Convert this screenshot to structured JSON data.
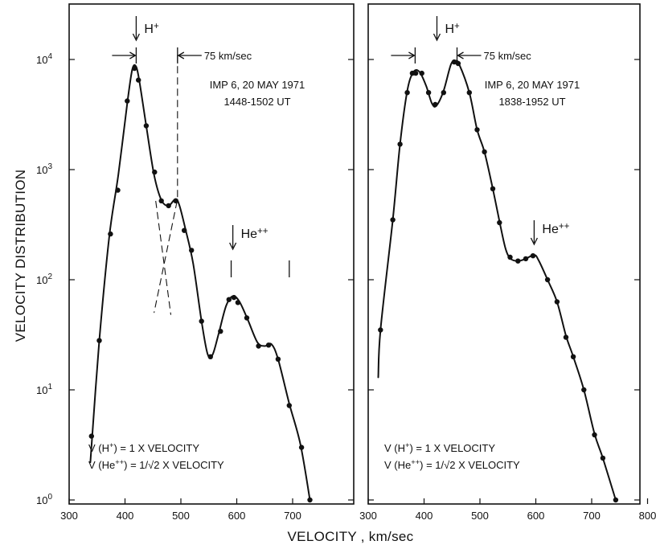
{
  "chart_data": {
    "type": "line",
    "xlabel": "VELOCITY , km/sec",
    "ylabel": "VELOCITY DISTRIBUTION",
    "yscale": "log",
    "ylim": [
      1,
      30000
    ],
    "ytick_exponents": [
      "0",
      "1",
      "2",
      "3",
      "4"
    ],
    "grid": false,
    "panels": [
      {
        "name": "left",
        "xlim": [
          300,
          760
        ],
        "xticks": [
          "300",
          "400",
          "500",
          "600",
          "700"
        ],
        "title_line1": "IMP 6,  20 MAY 1971",
        "title_line2": "1448-1502 UT",
        "h_label": "H",
        "h_sup": "+",
        "he_label": "He",
        "he_sup": "++",
        "width_label": "75  km/sec",
        "note_line1_pre": "V (H",
        "note_line1_sup": "+",
        "note_line1_post": ") = 1  X  VELOCITY",
        "note_line2_pre": "V (He",
        "note_line2_sup": "++",
        "note_line2_post": ") = 1/√2  X  VELOCITY",
        "h_arrow_x": 420,
        "he_arrow_x": 593,
        "width_marks": [
          420,
          494
        ],
        "he_marks": [
          590,
          694
        ],
        "points": [
          {
            "x": 340,
            "y": 3.8
          },
          {
            "x": 354,
            "y": 28
          },
          {
            "x": 374,
            "y": 260
          },
          {
            "x": 387,
            "y": 650
          },
          {
            "x": 404,
            "y": 4200
          },
          {
            "x": 417,
            "y": 8300
          },
          {
            "x": 424,
            "y": 6500
          },
          {
            "x": 438,
            "y": 2500
          },
          {
            "x": 453,
            "y": 950
          },
          {
            "x": 465,
            "y": 520
          },
          {
            "x": 478,
            "y": 470
          },
          {
            "x": 491,
            "y": 520
          },
          {
            "x": 506,
            "y": 280
          },
          {
            "x": 519,
            "y": 185
          },
          {
            "x": 537,
            "y": 42
          },
          {
            "x": 553,
            "y": 20
          },
          {
            "x": 571,
            "y": 34
          },
          {
            "x": 586,
            "y": 66
          },
          {
            "x": 595,
            "y": 69
          },
          {
            "x": 602,
            "y": 62
          },
          {
            "x": 618,
            "y": 45
          },
          {
            "x": 639,
            "y": 25
          },
          {
            "x": 657,
            "y": 25.5
          },
          {
            "x": 674,
            "y": 19
          },
          {
            "x": 694,
            "y": 7.2
          },
          {
            "x": 716,
            "y": 3
          },
          {
            "x": 731,
            "y": 1
          }
        ],
        "curve": [
          {
            "x": 338,
            "y": 2.2
          },
          {
            "x": 354,
            "y": 28
          },
          {
            "x": 372,
            "y": 250
          },
          {
            "x": 388,
            "y": 900
          },
          {
            "x": 404,
            "y": 4000
          },
          {
            "x": 413,
            "y": 8100
          },
          {
            "x": 420,
            "y": 8600
          },
          {
            "x": 426,
            "y": 6200
          },
          {
            "x": 438,
            "y": 2500
          },
          {
            "x": 452,
            "y": 900
          },
          {
            "x": 465,
            "y": 530
          },
          {
            "x": 478,
            "y": 470
          },
          {
            "x": 490,
            "y": 540
          },
          {
            "x": 497,
            "y": 480
          },
          {
            "x": 508,
            "y": 290
          },
          {
            "x": 522,
            "y": 140
          },
          {
            "x": 537,
            "y": 42
          },
          {
            "x": 548,
            "y": 21
          },
          {
            "x": 557,
            "y": 21
          },
          {
            "x": 568,
            "y": 33
          },
          {
            "x": 581,
            "y": 58
          },
          {
            "x": 593,
            "y": 71
          },
          {
            "x": 605,
            "y": 63
          },
          {
            "x": 620,
            "y": 43
          },
          {
            "x": 637,
            "y": 27
          },
          {
            "x": 650,
            "y": 25
          },
          {
            "x": 662,
            "y": 26
          },
          {
            "x": 674,
            "y": 19
          },
          {
            "x": 694,
            "y": 7.5
          },
          {
            "x": 714,
            "y": 3.2
          },
          {
            "x": 731,
            "y": 1
          }
        ],
        "dashed_lines": [
          [
            {
              "x": 494,
              "y": 11000
            },
            {
              "x": 494,
              "y": 540
            },
            {
              "x": 452,
              "y": 50
            }
          ],
          [
            {
              "x": 455,
              "y": 520
            },
            {
              "x": 482,
              "y": 48
            }
          ]
        ]
      },
      {
        "name": "right",
        "xlim": [
          300,
          810
        ],
        "xticks": [
          "300",
          "400",
          "500",
          "600",
          "700",
          "800"
        ],
        "title_line1": "IMP 6,  20 MAY 1971",
        "title_line2": "1838-1952 UT",
        "h_label": "H",
        "h_sup": "+",
        "he_label": "He",
        "he_sup": "++",
        "width_label": "75  km/sec",
        "note_line1_pre": "V (H",
        "note_line1_sup": "+",
        "note_line1_post": ") = 1  X  VELOCITY",
        "note_line2_pre": "V (He",
        "note_line2_sup": "++",
        "note_line2_post": ") = 1/√2  X  VELOCITY",
        "h_arrow_x": 423,
        "he_arrow_x": 597,
        "width_marks": [
          384,
          459
        ],
        "points": [
          {
            "x": 322,
            "y": 35
          },
          {
            "x": 344,
            "y": 350
          },
          {
            "x": 357,
            "y": 1700
          },
          {
            "x": 370,
            "y": 5000
          },
          {
            "x": 379,
            "y": 7500
          },
          {
            "x": 385,
            "y": 7500
          },
          {
            "x": 396,
            "y": 7500
          },
          {
            "x": 408,
            "y": 5000
          },
          {
            "x": 420,
            "y": 3900
          },
          {
            "x": 435,
            "y": 5000
          },
          {
            "x": 454,
            "y": 9500
          },
          {
            "x": 461,
            "y": 9200
          },
          {
            "x": 481,
            "y": 5000
          },
          {
            "x": 495,
            "y": 2300
          },
          {
            "x": 508,
            "y": 1450
          },
          {
            "x": 523,
            "y": 670
          },
          {
            "x": 535,
            "y": 330
          },
          {
            "x": 554,
            "y": 160
          },
          {
            "x": 568,
            "y": 148
          },
          {
            "x": 582,
            "y": 155
          },
          {
            "x": 595,
            "y": 165
          },
          {
            "x": 621,
            "y": 100
          },
          {
            "x": 638,
            "y": 63
          },
          {
            "x": 654,
            "y": 30
          },
          {
            "x": 667,
            "y": 20
          },
          {
            "x": 686,
            "y": 10
          },
          {
            "x": 705,
            "y": 3.9
          },
          {
            "x": 720,
            "y": 2.4
          },
          {
            "x": 743,
            "y": 1
          }
        ],
        "curve": [
          {
            "x": 318,
            "y": 13
          },
          {
            "x": 322,
            "y": 35
          },
          {
            "x": 344,
            "y": 350
          },
          {
            "x": 357,
            "y": 1700
          },
          {
            "x": 370,
            "y": 5200
          },
          {
            "x": 381,
            "y": 7700
          },
          {
            "x": 392,
            "y": 7700
          },
          {
            "x": 404,
            "y": 5700
          },
          {
            "x": 414,
            "y": 4000
          },
          {
            "x": 422,
            "y": 3800
          },
          {
            "x": 435,
            "y": 5200
          },
          {
            "x": 448,
            "y": 9000
          },
          {
            "x": 456,
            "y": 9700
          },
          {
            "x": 463,
            "y": 9000
          },
          {
            "x": 481,
            "y": 5000
          },
          {
            "x": 495,
            "y": 2300
          },
          {
            "x": 508,
            "y": 1450
          },
          {
            "x": 523,
            "y": 670
          },
          {
            "x": 536,
            "y": 320
          },
          {
            "x": 546,
            "y": 190
          },
          {
            "x": 555,
            "y": 155
          },
          {
            "x": 568,
            "y": 148
          },
          {
            "x": 582,
            "y": 155
          },
          {
            "x": 597,
            "y": 168
          },
          {
            "x": 605,
            "y": 150
          },
          {
            "x": 621,
            "y": 100
          },
          {
            "x": 638,
            "y": 63
          },
          {
            "x": 654,
            "y": 31
          },
          {
            "x": 667,
            "y": 20
          },
          {
            "x": 686,
            "y": 10
          },
          {
            "x": 705,
            "y": 4
          },
          {
            "x": 720,
            "y": 2.4
          },
          {
            "x": 743,
            "y": 1
          }
        ]
      }
    ]
  }
}
